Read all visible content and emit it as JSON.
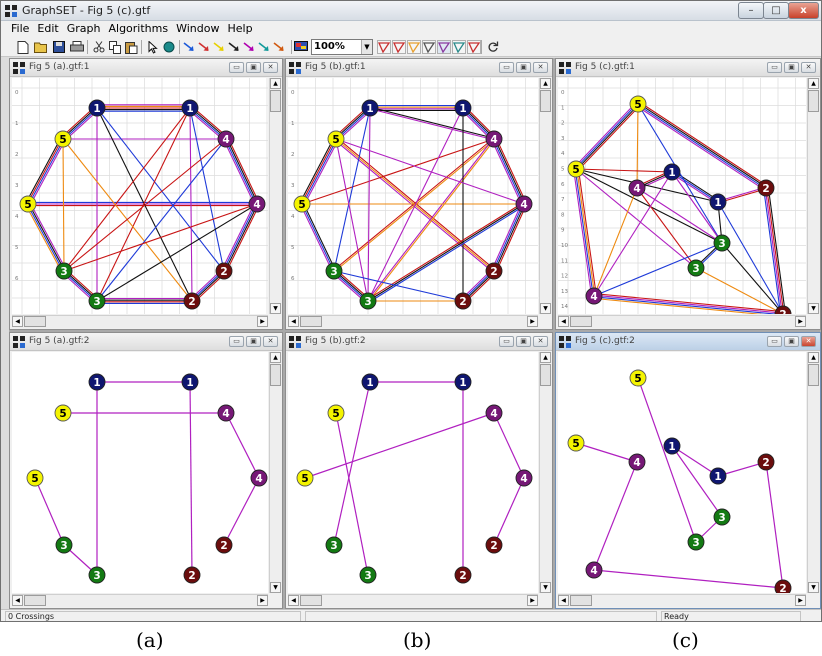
{
  "window": {
    "title": "GraphSET - Fig 5 (c).gtf",
    "min_label": "–",
    "max_label": "□",
    "close_label": "x"
  },
  "menu": [
    "File",
    "Edit",
    "Graph",
    "Algorithms",
    "Window",
    "Help"
  ],
  "toolbar": {
    "icons": [
      "new-icon",
      "open-icon",
      "save-icon",
      "print-icon",
      "cut-icon",
      "copy-icon",
      "paste-icon",
      "pointer-icon",
      "add-node-icon",
      "edge-arrow-icon",
      "layout-icon",
      "zoom-select",
      "refresh-icon"
    ],
    "edge_arrow_colors": [
      "#1c5ad9",
      "#d03030",
      "#e8d000",
      "#202020",
      "#b000b0",
      "#119a9a",
      "#d05a10"
    ],
    "zoom_value": "100%"
  },
  "child_windows": [
    {
      "title": "Fig 5 (a).gtf:1",
      "ruler": [
        "0",
        "1",
        "2",
        "3",
        "4",
        "5",
        "6"
      ]
    },
    {
      "title": "Fig 5 (b).gtf:1",
      "ruler": [
        "0",
        "1",
        "2",
        "3",
        "4",
        "5",
        "6"
      ]
    },
    {
      "title": "Fig 5 (c).gtf:1",
      "ruler": [
        "0",
        "1",
        "2",
        "3",
        "4",
        "5",
        "6",
        "7",
        "8",
        "9",
        "10",
        "11",
        "12",
        "13",
        "14"
      ]
    },
    {
      "title": "Fig 5 (a).gtf:2",
      "ruler": []
    },
    {
      "title": "Fig 5 (b).gtf:2",
      "ruler": []
    },
    {
      "title": "Fig 5 (c).gtf:2",
      "ruler": []
    }
  ],
  "node_colors": {
    "1": "#0f1670",
    "2": "#6b0d0d",
    "3": "#137a13",
    "4": "#761876",
    "5": "#f4f400"
  },
  "edge_colors": {
    "purple": "#b020c0",
    "black": "#111111",
    "blue": "#1e3ad8",
    "red": "#c81414",
    "orange": "#ee8a10"
  },
  "status": {
    "crossings": "0 Crossings",
    "state": "Ready"
  },
  "captions": [
    "(a)",
    "(b)",
    "(c)"
  ]
}
